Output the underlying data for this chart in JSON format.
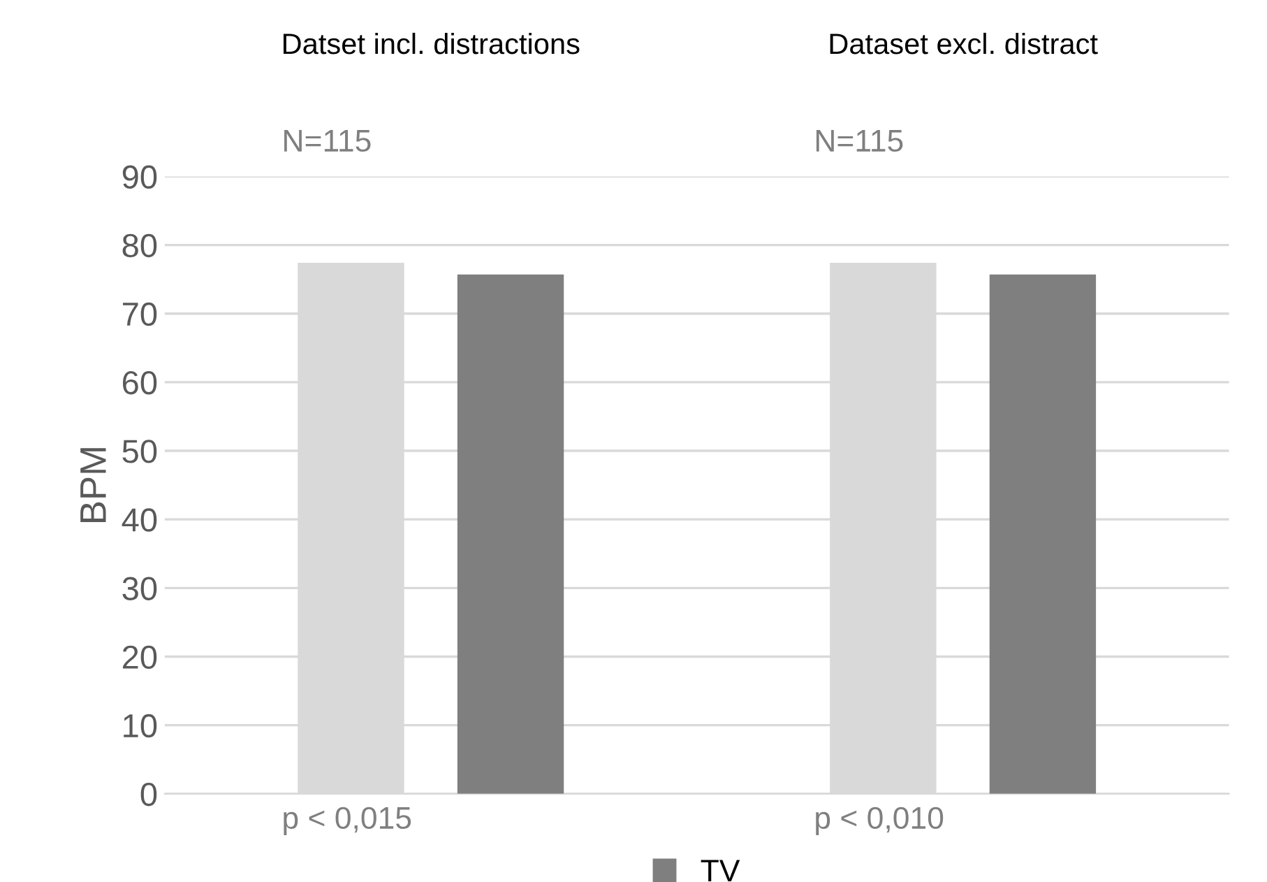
{
  "chart_data": {
    "type": "bar",
    "ylabel": "BPM",
    "categories": [
      "Datset incl. distractions",
      "Dataset excl. distract"
    ],
    "series": [
      {
        "color": "#d9d9d9",
        "values": [
          77.4,
          77.4
        ]
      },
      {
        "name": "TV",
        "color": "#7f7f7f",
        "values": [
          75.7,
          75.7
        ]
      }
    ],
    "ylim": [
      0,
      90
    ],
    "yticks": [
      0,
      10,
      20,
      30,
      40,
      50,
      60,
      70,
      80,
      90
    ],
    "grid": "y",
    "legend": "bottom",
    "annotations": [
      "N=115",
      "N=115",
      "p < 0,015",
      "p < 0,010"
    ]
  }
}
